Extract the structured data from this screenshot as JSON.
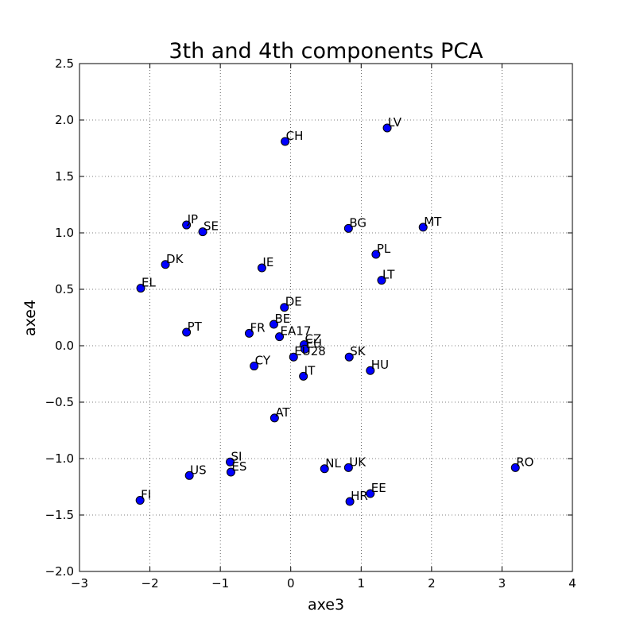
{
  "chart_data": {
    "type": "scatter",
    "title": "3th and 4th components PCA",
    "xlabel": "axe3",
    "ylabel": "axe4",
    "xlim": [
      -3,
      4
    ],
    "ylim": [
      -2.0,
      2.5
    ],
    "xticks": [
      -3,
      -2,
      -1,
      0,
      1,
      2,
      3,
      4
    ],
    "yticks": [
      -2.0,
      -1.5,
      -1.0,
      -0.5,
      0.0,
      0.5,
      1.0,
      1.5,
      2.0,
      2.5
    ],
    "xtick_labels": [
      "−3",
      "−2",
      "−1",
      "0",
      "1",
      "2",
      "3",
      "4"
    ],
    "ytick_labels": [
      "−2.0",
      "−1.5",
      "−1.0",
      "−0.5",
      "0.0",
      "0.5",
      "1.0",
      "1.5",
      "2.0",
      "2.5"
    ],
    "grid": true,
    "marker_color": "#0000ff",
    "points": [
      {
        "label": "LV",
        "x": 1.37,
        "y": 1.93
      },
      {
        "label": "CH",
        "x": -0.08,
        "y": 1.81
      },
      {
        "label": "JP",
        "x": -1.48,
        "y": 1.07
      },
      {
        "label": "SE",
        "x": -1.25,
        "y": 1.01
      },
      {
        "label": "BG",
        "x": 0.82,
        "y": 1.04
      },
      {
        "label": "MT",
        "x": 1.88,
        "y": 1.05
      },
      {
        "label": "PL",
        "x": 1.21,
        "y": 0.81
      },
      {
        "label": "DK",
        "x": -1.78,
        "y": 0.72
      },
      {
        "label": "IE",
        "x": -0.41,
        "y": 0.69
      },
      {
        "label": "LT",
        "x": 1.29,
        "y": 0.58
      },
      {
        "label": "EL",
        "x": -2.13,
        "y": 0.51
      },
      {
        "label": "DE",
        "x": -0.09,
        "y": 0.34
      },
      {
        "label": "BE",
        "x": -0.24,
        "y": 0.19
      },
      {
        "label": "PT",
        "x": -1.48,
        "y": 0.12
      },
      {
        "label": "FR",
        "x": -0.59,
        "y": 0.11
      },
      {
        "label": "EA17",
        "x": -0.16,
        "y": 0.08
      },
      {
        "label": "CZ",
        "x": 0.19,
        "y": 0.01
      },
      {
        "label": "EU",
        "x": 0.2,
        "y": -0.03
      },
      {
        "label": "EU28",
        "x": 0.04,
        "y": -0.1
      },
      {
        "label": "SK",
        "x": 0.83,
        "y": -0.1
      },
      {
        "label": "HU",
        "x": 1.13,
        "y": -0.22
      },
      {
        "label": "CY",
        "x": -0.52,
        "y": -0.18
      },
      {
        "label": "IT",
        "x": 0.18,
        "y": -0.27
      },
      {
        "label": "AT",
        "x": -0.23,
        "y": -0.64
      },
      {
        "label": "SI",
        "x": -0.86,
        "y": -1.03
      },
      {
        "label": "ES",
        "x": -0.85,
        "y": -1.12
      },
      {
        "label": "US",
        "x": -1.44,
        "y": -1.15
      },
      {
        "label": "NL",
        "x": 0.48,
        "y": -1.09
      },
      {
        "label": "UK",
        "x": 0.82,
        "y": -1.08
      },
      {
        "label": "RO",
        "x": 3.19,
        "y": -1.08
      },
      {
        "label": "EE",
        "x": 1.13,
        "y": -1.31
      },
      {
        "label": "HR",
        "x": 0.84,
        "y": -1.38
      },
      {
        "label": "FI",
        "x": -2.14,
        "y": -1.37
      }
    ]
  }
}
